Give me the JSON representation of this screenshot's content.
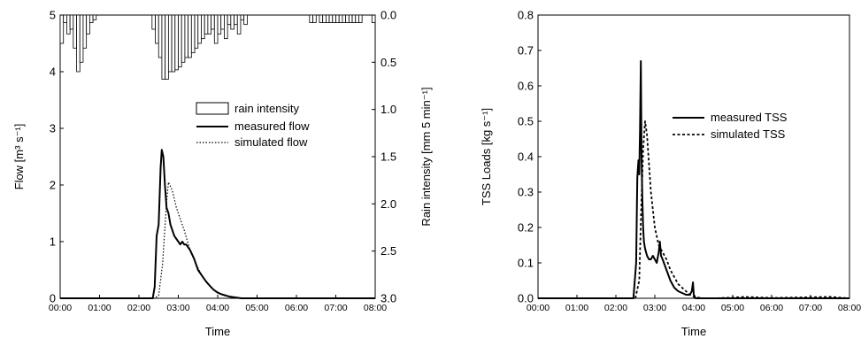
{
  "chart_data": [
    {
      "type": "line",
      "xlabel": "Time",
      "ylabel_left": "Flow [m³ s⁻¹]",
      "ylabel_right": "Rain intensity [mm 5 min⁻¹]",
      "x_ticks": [
        "00:00",
        "01:00",
        "02:00",
        "03:00",
        "04:00",
        "05:00",
        "06:00",
        "07:00",
        "08:00"
      ],
      "xlim_hours": [
        0,
        8
      ],
      "ylim_left": [
        0,
        5
      ],
      "y_ticks_left": [
        "0",
        "1",
        "2",
        "3",
        "4",
        "5"
      ],
      "ylim_right_inverted": [
        0,
        3.0
      ],
      "y_ticks_right": [
        "0.0",
        "0.5",
        "1.0",
        "1.5",
        "2.0",
        "2.5",
        "3.0"
      ],
      "legend": {
        "placement": "center-right",
        "entries": [
          {
            "label": "rain intensity",
            "style": "bar"
          },
          {
            "label": "measured flow",
            "style": "solid"
          },
          {
            "label": "simulated flow",
            "style": "dotted"
          }
        ]
      },
      "rain_bars": {
        "name": "rain intensity",
        "interval_hours": 0.0833,
        "start_hours": [
          0.0,
          0.083,
          0.167,
          0.25,
          0.333,
          0.417,
          0.5,
          0.583,
          0.667,
          0.75,
          0.833,
          2.333,
          2.417,
          2.5,
          2.583,
          2.667,
          2.75,
          2.833,
          2.917,
          3.0,
          3.083,
          3.167,
          3.25,
          3.333,
          3.417,
          3.5,
          3.583,
          3.667,
          3.75,
          3.833,
          3.917,
          4.0,
          4.083,
          4.167,
          4.25,
          4.333,
          4.417,
          4.5,
          4.583,
          4.667,
          6.333,
          6.417,
          6.583,
          6.667,
          6.75,
          6.833,
          6.917,
          7.0,
          7.083,
          7.167,
          7.25,
          7.333,
          7.417,
          7.5,
          7.583,
          7.917
        ],
        "values": [
          0.3,
          0.08,
          0.2,
          0.15,
          0.35,
          0.6,
          0.5,
          0.35,
          0.2,
          0.08,
          0.05,
          0.15,
          0.3,
          0.45,
          0.68,
          0.68,
          0.6,
          0.6,
          0.58,
          0.55,
          0.5,
          0.45,
          0.45,
          0.4,
          0.35,
          0.3,
          0.25,
          0.2,
          0.2,
          0.15,
          0.3,
          0.2,
          0.15,
          0.25,
          0.1,
          0.15,
          0.1,
          0.2,
          0.05,
          0.1,
          0.08,
          0.08,
          0.08,
          0.08,
          0.08,
          0.08,
          0.08,
          0.08,
          0.08,
          0.08,
          0.08,
          0.08,
          0.08,
          0.08,
          0.08,
          0.08
        ]
      },
      "series": [
        {
          "name": "measured flow",
          "style": "solid",
          "x_hours": [
            0,
            2.35,
            2.4,
            2.45,
            2.5,
            2.55,
            2.58,
            2.62,
            2.66,
            2.7,
            2.75,
            2.8,
            2.9,
            3.0,
            3.05,
            3.1,
            3.15,
            3.2,
            3.3,
            3.4,
            3.5,
            3.6,
            3.7,
            3.8,
            3.9,
            4.0,
            4.1,
            4.2,
            4.3,
            4.4,
            4.5,
            4.6,
            4.7,
            8.0
          ],
          "y": [
            0,
            0,
            0.2,
            1.1,
            1.3,
            2.3,
            2.62,
            2.5,
            2.0,
            1.6,
            1.5,
            1.3,
            1.1,
            1.0,
            0.95,
            1.0,
            0.95,
            0.95,
            0.85,
            0.7,
            0.5,
            0.4,
            0.3,
            0.22,
            0.15,
            0.1,
            0.07,
            0.05,
            0.03,
            0.02,
            0.01,
            0.0,
            0.0,
            0.0
          ]
        },
        {
          "name": "simulated flow",
          "style": "dotted",
          "x_hours": [
            0,
            2.4,
            2.5,
            2.6,
            2.7,
            2.75,
            2.85,
            2.95,
            3.05,
            3.15,
            3.3,
            3.45,
            3.6,
            3.75,
            3.9,
            4.05,
            4.2,
            4.35,
            4.5,
            8.0
          ],
          "y": [
            0,
            0,
            0.05,
            0.6,
            1.7,
            2.05,
            1.9,
            1.6,
            1.4,
            1.2,
            0.85,
            0.6,
            0.4,
            0.25,
            0.15,
            0.08,
            0.04,
            0.02,
            0.0,
            0.0
          ]
        }
      ]
    },
    {
      "type": "line",
      "xlabel": "Time",
      "ylabel": "TSS Loads [kg s⁻¹]",
      "x_ticks": [
        "00:00",
        "01:00",
        "02:00",
        "03:00",
        "04:00",
        "05:00",
        "06:00",
        "07:00",
        "08:00"
      ],
      "xlim_hours": [
        0,
        8
      ],
      "ylim": [
        0,
        0.8
      ],
      "y_ticks": [
        "0.0",
        "0.1",
        "0.2",
        "0.3",
        "0.4",
        "0.5",
        "0.6",
        "0.7",
        "0.8"
      ],
      "legend": {
        "placement": "center-right",
        "entries": [
          {
            "label": "measured TSS",
            "style": "solid"
          },
          {
            "label": "simulated TSS",
            "style": "dashed"
          }
        ]
      },
      "series": [
        {
          "name": "measured TSS",
          "style": "solid",
          "x_hours": [
            0,
            2.45,
            2.52,
            2.55,
            2.58,
            2.6,
            2.62,
            2.64,
            2.66,
            2.68,
            2.7,
            2.72,
            2.75,
            2.8,
            2.85,
            2.9,
            2.95,
            3.0,
            3.05,
            3.1,
            3.13,
            3.16,
            3.2,
            3.3,
            3.4,
            3.5,
            3.6,
            3.7,
            3.8,
            3.9,
            3.95,
            3.98,
            4.0,
            4.05,
            4.2,
            8.0
          ],
          "y": [
            0,
            0,
            0.1,
            0.34,
            0.39,
            0.35,
            0.48,
            0.67,
            0.4,
            0.28,
            0.2,
            0.16,
            0.14,
            0.12,
            0.11,
            0.11,
            0.12,
            0.11,
            0.1,
            0.13,
            0.16,
            0.12,
            0.11,
            0.08,
            0.05,
            0.03,
            0.02,
            0.015,
            0.01,
            0.01,
            0.02,
            0.045,
            0.01,
            0.0,
            0.0,
            0.0
          ]
        },
        {
          "name": "simulated TSS",
          "style": "dashed",
          "x_hours": [
            0,
            2.5,
            2.6,
            2.65,
            2.7,
            2.75,
            2.8,
            2.85,
            2.9,
            3.0,
            3.1,
            3.2,
            3.3,
            3.4,
            3.5,
            3.6,
            3.7,
            3.8,
            3.9,
            4.0,
            4.2,
            4.5,
            5.0,
            5.3,
            6.0,
            7.0,
            7.5,
            8.0
          ],
          "y": [
            0,
            0,
            0.05,
            0.25,
            0.42,
            0.5,
            0.46,
            0.38,
            0.3,
            0.2,
            0.15,
            0.13,
            0.11,
            0.08,
            0.06,
            0.04,
            0.03,
            0.02,
            0.01,
            0.005,
            0.0,
            0.0,
            0.002,
            0.004,
            0.001,
            0.003,
            0.004,
            0.0
          ]
        }
      ]
    }
  ]
}
